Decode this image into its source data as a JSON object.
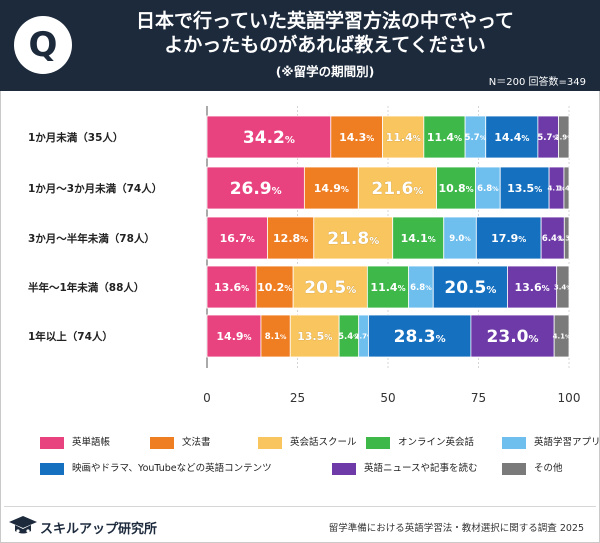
{
  "header": {
    "logo_letter": "Q",
    "title_line1": "日本で行っていた英語学習方法の中でやって",
    "title_line2": "よかったものがあれば教えてください",
    "subtitle": "(※留学の期間別)",
    "sample_info": "N＝200 回答数=349"
  },
  "chart_data": {
    "type": "bar",
    "orientation": "horizontal-stacked-100",
    "categories": [
      "1か月未満（35人）",
      "1か月〜3か月未満（74人）",
      "3か月〜半年未満（78人）",
      "半年〜1年未満（88人）",
      "1年以上（74人）"
    ],
    "series": [
      {
        "name": "英単語帳",
        "color": "#e8437f",
        "values": [
          34.2,
          26.9,
          16.7,
          13.6,
          14.9
        ]
      },
      {
        "name": "文法書",
        "color": "#ef7d22",
        "values": [
          14.3,
          14.9,
          12.8,
          10.2,
          8.1
        ]
      },
      {
        "name": "英会話スクール",
        "color": "#f9c55f",
        "values": [
          11.4,
          21.6,
          21.8,
          20.5,
          13.5
        ]
      },
      {
        "name": "オンライン英会話",
        "color": "#3db849",
        "values": [
          11.4,
          10.8,
          14.1,
          11.4,
          5.4
        ]
      },
      {
        "name": "英語学習アプリ",
        "color": "#6fbfee",
        "values": [
          5.7,
          6.8,
          9.0,
          6.8,
          2.7
        ]
      },
      {
        "name": "映画やドラマ、YouTubeなどの英語コンテンツ",
        "color": "#1570bf",
        "values": [
          14.4,
          13.5,
          17.9,
          20.5,
          28.3
        ]
      },
      {
        "name": "英語ニュースや記事を読む",
        "color": "#6d3aa8",
        "values": [
          5.7,
          4.1,
          6.4,
          13.6,
          23.0
        ]
      },
      {
        "name": "その他",
        "color": "#7a7a7a",
        "values": [
          2.9,
          1.4,
          1.3,
          3.4,
          4.1
        ]
      }
    ],
    "xlim": [
      0,
      100
    ],
    "xticks": [
      0,
      25,
      50,
      75,
      100
    ],
    "grid": true,
    "legend_position": "bottom"
  },
  "footer": {
    "logo_text": "スキルアップ研究所",
    "source": "留学準備における英語学習法・教材選択に関する調査 2025"
  }
}
